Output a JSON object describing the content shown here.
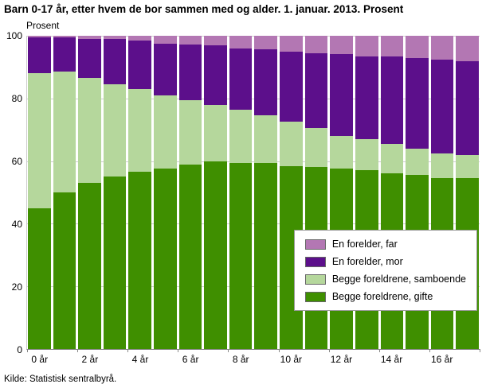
{
  "title": "Barn 0-17 år, etter hvem de bor sammen med og alder. 1. januar. 2013. Prosent",
  "y_axis_title": "Prosent",
  "source": "Kilde: Statistisk sentralbyrå.",
  "chart_data": {
    "type": "bar",
    "stacked": true,
    "title": "Barn 0-17 år, etter hvem de bor sammen med og alder. 1. januar. 2013. Prosent",
    "xlabel": "",
    "ylabel": "Prosent",
    "ylim": [
      0,
      100
    ],
    "yticks": [
      0,
      20,
      40,
      60,
      80,
      100
    ],
    "grid": true,
    "xtick_every": 2,
    "legend_position": "bottom-right-inside",
    "categories": [
      "0 år",
      "1 år",
      "2 år",
      "3 år",
      "4 år",
      "5 år",
      "6 år",
      "7 år",
      "8 år",
      "9 år",
      "10 år",
      "11 år",
      "12 år",
      "13 år",
      "14 år",
      "15 år",
      "16 år",
      "17 år"
    ],
    "series": [
      {
        "name": "Begge foreldrene, gifte",
        "color": "#3f8f00",
        "values": [
          45,
          50,
          53,
          55,
          56.5,
          57.5,
          59,
          60,
          59.5,
          59.5,
          58.5,
          58,
          57.5,
          57,
          56,
          55.5,
          54.5,
          54.5
        ]
      },
      {
        "name": "Begge foreldrene, samboende",
        "color": "#b5d79c",
        "values": [
          43,
          38.5,
          33.5,
          29.5,
          26.5,
          23.5,
          20.5,
          18,
          17,
          15,
          14,
          12.5,
          10.5,
          10,
          9.5,
          8.5,
          8,
          7.5
        ]
      },
      {
        "name": "En forelder, mor",
        "color": "#5c0f8b",
        "values": [
          11.5,
          11,
          12.5,
          14.5,
          15.5,
          16.5,
          17.8,
          19,
          19.5,
          21.3,
          22.5,
          24,
          26.2,
          26.5,
          27.8,
          29,
          29.8,
          30
        ]
      },
      {
        "name": "En forelder, far",
        "color": "#b377b3",
        "values": [
          0.5,
          0.5,
          1,
          1,
          1.5,
          2.5,
          2.7,
          3,
          4,
          4.2,
          5,
          5.5,
          5.8,
          6.5,
          6.7,
          7,
          7.7,
          8
        ]
      }
    ],
    "legend": [
      {
        "label": "En forelder, far",
        "color": "#b377b3"
      },
      {
        "label": "En forelder, mor",
        "color": "#5c0f8b"
      },
      {
        "label": "Begge foreldrene, samboende",
        "color": "#b5d79c"
      },
      {
        "label": "Begge foreldrene, gifte",
        "color": "#3f8f00"
      }
    ]
  }
}
